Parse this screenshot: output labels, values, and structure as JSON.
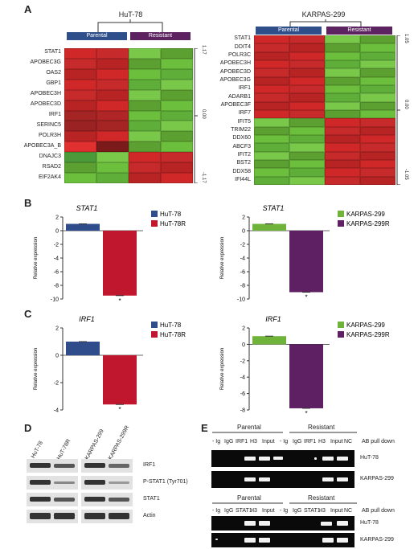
{
  "panels": {
    "A": "A",
    "B": "B",
    "C": "C",
    "D": "D",
    "E": "E"
  },
  "heatmap_left": {
    "title": "HuT-78",
    "groups": [
      "Parental",
      "Resistant"
    ],
    "genes": [
      "STAT1",
      "APOBEC3G",
      "OAS2",
      "GBP1",
      "APOBEC3H",
      "APOBEC3D",
      "IRF1",
      "SERINC5",
      "POLR3H",
      "APOBEC3A_B",
      "DNAJC3",
      "RSAD2",
      "EIF2AK4"
    ],
    "scale": [
      "1.17",
      "0.00",
      "-1.17"
    ]
  },
  "heatmap_right": {
    "title": "KARPAS-299",
    "groups": [
      "Parental",
      "Resistant"
    ],
    "genes": [
      "STAT1",
      "DDIT4",
      "POLR3C",
      "APOBEC3H",
      "APOBEC3D",
      "APOBEC3G",
      "IRF1",
      "ADARB1",
      "APOBEC3F",
      "IRF7",
      "IFIT5",
      "TRIM22",
      "DDX60",
      "ABCF3",
      "IFIT2",
      "BST2",
      "DDX58",
      "IFI44L"
    ],
    "scale": [
      "1.05",
      "0.00",
      "-1.05"
    ]
  },
  "chart_data": [
    {
      "type": "bar",
      "panel": "B",
      "title": "STAT1",
      "ylabel": "Relative expression",
      "ylim": [
        -10,
        2
      ],
      "ticks": [
        "2",
        "0",
        "-2",
        "-4",
        "-6",
        "-8",
        "-10"
      ],
      "categories": [
        "HuT-78",
        "HuT-78R"
      ],
      "values": [
        1,
        -9.5
      ],
      "colors": [
        "#2e4d8a",
        "#c0172f"
      ],
      "sig": "*"
    },
    {
      "type": "bar",
      "panel": "B",
      "title": "STAT1",
      "ylabel": "Relative expression",
      "ylim": [
        -10,
        2
      ],
      "ticks": [
        "2",
        "0",
        "-2",
        "-4",
        "-6",
        "-8",
        "-10"
      ],
      "categories": [
        "KARPAS-299",
        "KARPAS-299R"
      ],
      "values": [
        1,
        -9
      ],
      "colors": [
        "#6fb33a",
        "#5e2063"
      ],
      "sig": "*"
    },
    {
      "type": "bar",
      "panel": "C",
      "title": "IRF1",
      "ylabel": "Relative expression",
      "ylim": [
        -4,
        2
      ],
      "ticks": [
        "2",
        "0",
        "-2",
        "-4"
      ],
      "categories": [
        "HuT-78",
        "HuT-78R"
      ],
      "values": [
        1,
        -3.6
      ],
      "colors": [
        "#2e4d8a",
        "#c0172f"
      ],
      "sig": "*"
    },
    {
      "type": "bar",
      "panel": "C",
      "title": "IRF1",
      "ylabel": "Relative expression",
      "ylim": [
        -8,
        2
      ],
      "ticks": [
        "2",
        "0",
        "-2",
        "-4",
        "-6",
        "-8"
      ],
      "categories": [
        "KARPAS-299",
        "KARPAS-299R"
      ],
      "values": [
        1,
        -7.8
      ],
      "colors": [
        "#6fb33a",
        "#5e2063"
      ],
      "sig": "*"
    }
  ],
  "western": {
    "lanes": [
      "HuT-78",
      "HuT-78R",
      "KARPAS-299",
      "KARPAS-299R"
    ],
    "rows": [
      "IRF1",
      "P-STAT1 (Tyr701)",
      "STAT1",
      "Actin"
    ]
  },
  "chip": {
    "parental": "Parental",
    "resistant": "Resistant",
    "lanes1": [
      "- Ig",
      "IgG",
      "IRF1",
      "H3",
      "Input",
      "- Ig",
      "IgG",
      "IRF1",
      "H3",
      "Input",
      "NC"
    ],
    "lanes2": [
      "- Ig",
      "IgG",
      "STAT1",
      "H3",
      "Input",
      "- Ig",
      "IgG",
      "STAT1",
      "H3",
      "Input",
      "NC"
    ],
    "pulldown": "AB pull down",
    "cells": [
      "HuT-78",
      "KARPAS-299"
    ]
  }
}
